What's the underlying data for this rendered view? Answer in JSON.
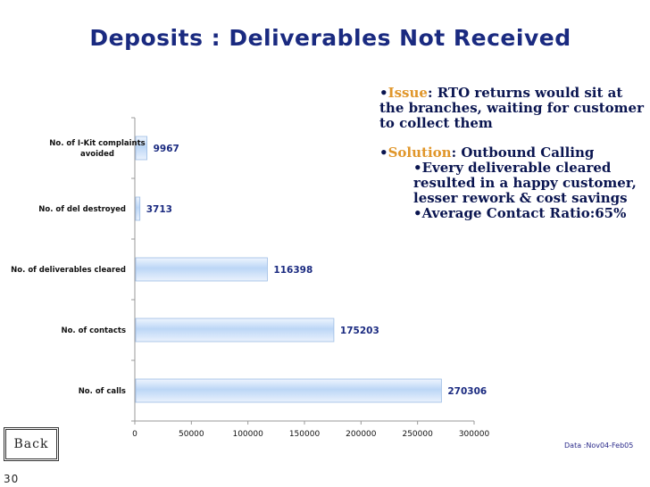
{
  "slide": {
    "title": "Deposits : Deliverables Not Received",
    "back_label": "Back",
    "source_note": "Data :Nov04-Feb05",
    "page_number": "30"
  },
  "notes": {
    "issue_label": "Issue",
    "issue_text": ": RTO returns would sit at the branches, waiting for customer to collect them",
    "solution_label": "Solution",
    "solution_text": ": Outbound Calling",
    "sub_bullets": [
      "Every deliverable cleared resulted in a happy customer, lesser rework & cost savings",
      "Average Contact Ratio:65%"
    ]
  },
  "colors": {
    "title": "#1a2a80",
    "keyword": "#e0962a",
    "bar_fill": "#bcd6f6",
    "value_label": "#1a2a80"
  },
  "chart_data": {
    "type": "bar",
    "orientation": "horizontal",
    "categories": [
      "No. of I-Kit complaints avoided",
      "No. of del destroyed",
      "No. of deliverables cleared",
      "No. of contacts",
      "No. of calls"
    ],
    "values": [
      9967,
      3713,
      116398,
      175203,
      270306
    ],
    "data_labels": [
      "9967",
      "3713",
      "116398",
      "175203",
      "270306"
    ],
    "xlim": [
      0,
      300000
    ],
    "x_ticks": [
      0,
      50000,
      100000,
      150000,
      200000,
      250000,
      300000
    ],
    "x_tick_labels": [
      "0",
      "50000",
      "100000",
      "150000",
      "200000",
      "250000",
      "300000"
    ],
    "grid": false,
    "legend": "none"
  }
}
